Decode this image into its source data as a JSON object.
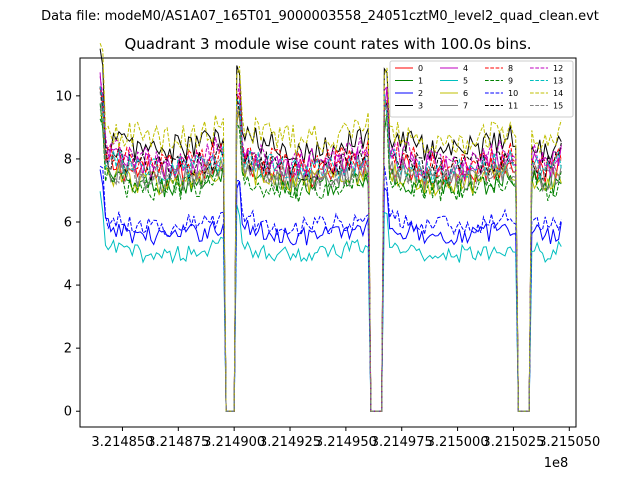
{
  "chart_data": {
    "type": "line",
    "suptitle": "Data file: modeM0/AS1A07_165T01_9000003558_24051cztM0_level2_quad_clean.evt",
    "title": "Quadrant 3 module wise count rates with 100.0s bins.",
    "xlabel": "",
    "ylabel": "",
    "x_offset_label": "1e8",
    "xlim": [
      3.214831,
      3.215053
    ],
    "ylim": [
      -0.5,
      11.2
    ],
    "x_ticks": [
      3.21485,
      3.214875,
      3.2149,
      3.214925,
      3.21495,
      3.214975,
      3.215,
      3.215025,
      3.21505
    ],
    "x_tick_labels": [
      "3.214850",
      "3.214875",
      "3.214900",
      "3.214925",
      "3.214950",
      "3.214975",
      "3.215000",
      "3.215025",
      "3.215050"
    ],
    "y_ticks": [
      0,
      2,
      4,
      6,
      8,
      10
    ],
    "y_tick_labels": [
      "0",
      "2",
      "4",
      "6",
      "8",
      "10"
    ],
    "grid": false,
    "legend_position": "top-right",
    "segments": [
      {
        "x0": 3.21484,
        "x1": 3.214896
      },
      {
        "x0": 3.214901,
        "x1": 3.214961
      },
      {
        "x0": 3.214967,
        "x1": 3.215027
      },
      {
        "x0": 3.215032,
        "x1": 3.215047
      }
    ],
    "gaps": [
      {
        "x0": 3.214896,
        "x1": 3.214901
      },
      {
        "x0": 3.214961,
        "x1": 3.214967
      },
      {
        "x0": 3.215027,
        "x1": 3.215032
      }
    ],
    "series": [
      {
        "name": "0",
        "color": "#ff0000",
        "dash": "solid",
        "level": 7.7
      },
      {
        "name": "1",
        "color": "#008000",
        "dash": "solid",
        "level": 7.3
      },
      {
        "name": "2",
        "color": "#0000ff",
        "dash": "solid",
        "level": 5.7
      },
      {
        "name": "3",
        "color": "#000000",
        "dash": "solid",
        "level": 8.5
      },
      {
        "name": "4",
        "color": "#bf00bf",
        "dash": "solid",
        "level": 7.9
      },
      {
        "name": "5",
        "color": "#00bfbf",
        "dash": "solid",
        "level": 5.1
      },
      {
        "name": "6",
        "color": "#bfbf00",
        "dash": "solid",
        "level": 7.4
      },
      {
        "name": "7",
        "color": "#808080",
        "dash": "solid",
        "level": 7.5
      },
      {
        "name": "8",
        "color": "#ff0000",
        "dash": "dashed",
        "level": 8.0
      },
      {
        "name": "9",
        "color": "#008000",
        "dash": "dashed",
        "level": 7.2
      },
      {
        "name": "10",
        "color": "#0000ff",
        "dash": "dashed",
        "level": 6.0
      },
      {
        "name": "11",
        "color": "#000000",
        "dash": "dashed",
        "level": 7.9
      },
      {
        "name": "12",
        "color": "#bf00bf",
        "dash": "dashed",
        "level": 8.1
      },
      {
        "name": "13",
        "color": "#00bfbf",
        "dash": "dashed",
        "level": 7.8
      },
      {
        "name": "14",
        "color": "#bfbf00",
        "dash": "dashed",
        "level": 8.8
      },
      {
        "name": "15",
        "color": "#808080",
        "dash": "dashed",
        "level": 7.6
      }
    ]
  }
}
